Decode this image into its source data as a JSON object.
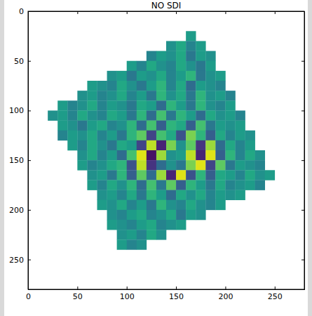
{
  "chart_data": {
    "type": "heatmap",
    "title": "NO SDI",
    "color": "viridis",
    "xlim": [
      0,
      280
    ],
    "ylim": [
      280,
      0
    ],
    "xticks": [
      0,
      50,
      100,
      150,
      200,
      250
    ],
    "yticks": [
      0,
      50,
      100,
      150,
      200,
      250
    ],
    "zlim": [
      -1,
      1
    ],
    "x_edges": [
      0,
      10,
      20,
      30,
      40,
      50,
      60,
      70,
      80,
      90,
      100,
      110,
      120,
      130,
      140,
      150,
      160,
      170,
      180,
      190,
      200,
      210,
      220,
      230,
      240,
      250,
      260,
      270,
      280
    ],
    "y_edges": [
      0,
      10,
      20,
      30,
      40,
      50,
      60,
      70,
      80,
      90,
      100,
      110,
      120,
      130,
      140,
      150,
      160,
      170,
      180,
      190,
      200,
      210,
      220,
      230,
      240,
      250,
      260,
      270,
      280
    ],
    "cells": [
      [
        null,
        null,
        null,
        null,
        null,
        null,
        null,
        null,
        null,
        null,
        null,
        null,
        null,
        null,
        null,
        null,
        null,
        null,
        null,
        null,
        null,
        null,
        null,
        null,
        null,
        null,
        null,
        null
      ],
      [
        null,
        null,
        null,
        null,
        null,
        null,
        null,
        null,
        null,
        null,
        null,
        null,
        null,
        null,
        null,
        null,
        null,
        null,
        null,
        null,
        null,
        null,
        null,
        null,
        null,
        null,
        null,
        null
      ],
      [
        null,
        null,
        null,
        null,
        null,
        null,
        null,
        null,
        null,
        null,
        null,
        null,
        null,
        null,
        null,
        null,
        0.1,
        null,
        null,
        null,
        null,
        null,
        null,
        null,
        null,
        null,
        null,
        null
      ],
      [
        null,
        null,
        null,
        null,
        null,
        null,
        null,
        null,
        null,
        null,
        null,
        null,
        null,
        null,
        0.0,
        0.2,
        -0.1,
        0.1,
        null,
        null,
        null,
        null,
        null,
        null,
        null,
        null,
        null,
        null
      ],
      [
        null,
        null,
        null,
        null,
        null,
        null,
        null,
        null,
        null,
        null,
        null,
        null,
        -0.1,
        0.1,
        0.0,
        0.2,
        -0.2,
        0.1,
        0.0,
        null,
        null,
        null,
        null,
        null,
        null,
        null,
        null,
        null
      ],
      [
        null,
        null,
        null,
        null,
        null,
        null,
        null,
        null,
        null,
        null,
        0.1,
        -0.1,
        0.2,
        0.0,
        -0.1,
        0.2,
        0.0,
        -0.2,
        0.1,
        null,
        null,
        null,
        null,
        null,
        null,
        null,
        null,
        null
      ],
      [
        null,
        null,
        null,
        null,
        null,
        null,
        null,
        null,
        0.0,
        0.1,
        -0.2,
        0.1,
        0.0,
        0.2,
        -0.1,
        0.1,
        0.3,
        -0.2,
        0.0,
        0.1,
        null,
        null,
        null,
        null,
        null,
        null,
        null,
        null
      ],
      [
        null,
        null,
        null,
        null,
        null,
        null,
        0.1,
        0.0,
        -0.1,
        0.2,
        0.0,
        -0.2,
        0.1,
        0.3,
        -0.1,
        0.2,
        -0.3,
        0.1,
        0.0,
        -0.1,
        null,
        null,
        null,
        null,
        null,
        null,
        null,
        null
      ],
      [
        null,
        null,
        null,
        null,
        null,
        0.0,
        0.1,
        -0.1,
        0.0,
        0.2,
        -0.1,
        0.1,
        -0.2,
        0.3,
        0.0,
        0.2,
        -0.2,
        0.3,
        0.0,
        0.1,
        -0.1,
        null,
        null,
        null,
        null,
        null,
        null,
        null
      ],
      [
        null,
        null,
        null,
        0.1,
        -0.1,
        0.0,
        0.2,
        -0.1,
        0.1,
        0.0,
        -0.2,
        0.2,
        0.1,
        -0.3,
        0.3,
        0.1,
        -0.2,
        0.3,
        0.0,
        -0.1,
        0.1,
        null,
        null,
        null,
        null,
        null,
        null,
        null
      ],
      [
        null,
        null,
        0.0,
        0.1,
        -0.1,
        0.2,
        0.0,
        -0.1,
        0.2,
        0.1,
        -0.2,
        0.3,
        -0.3,
        0.4,
        -0.2,
        0.3,
        0.1,
        -0.3,
        0.2,
        0.0,
        0.1,
        -0.1,
        null,
        null,
        null,
        null,
        null,
        null
      ],
      [
        null,
        null,
        null,
        0.1,
        0.0,
        -0.2,
        0.1,
        0.2,
        -0.1,
        0.0,
        0.3,
        -0.3,
        0.4,
        -0.4,
        0.3,
        0.2,
        -0.4,
        0.4,
        -0.2,
        0.1,
        0.0,
        0.1,
        null,
        null,
        null,
        null,
        null,
        null
      ],
      [
        null,
        null,
        null,
        -0.1,
        0.1,
        0.0,
        0.2,
        -0.1,
        0.1,
        -0.2,
        0.3,
        0.5,
        -0.6,
        0.4,
        0.2,
        -0.5,
        0.6,
        0.3,
        -0.4,
        0.2,
        -0.1,
        0.1,
        0.0,
        null,
        null,
        null,
        null,
        null
      ],
      [
        null,
        null,
        null,
        null,
        0.1,
        -0.1,
        0.2,
        0.0,
        -0.2,
        0.2,
        0.1,
        -0.6,
        0.8,
        -0.8,
        0.6,
        0.0,
        0.5,
        -0.7,
        0.7,
        -0.3,
        0.2,
        -0.1,
        0.1,
        null,
        null,
        null,
        null,
        null
      ],
      [
        null,
        null,
        null,
        null,
        null,
        0.0,
        0.2,
        -0.1,
        0.1,
        -0.3,
        0.4,
        0.9,
        -0.9,
        0.7,
        0.0,
        0.1,
        0.8,
        -0.8,
        0.9,
        -0.4,
        0.3,
        -0.1,
        0.2,
        0.0,
        null,
        null,
        null,
        null
      ],
      [
        null,
        null,
        null,
        null,
        null,
        0.1,
        -0.1,
        0.0,
        0.2,
        0.3,
        -0.5,
        0.8,
        -0.7,
        -0.3,
        0.0,
        -0.2,
        0.6,
        0.9,
        -0.6,
        0.5,
        -0.2,
        0.1,
        0.0,
        -0.1,
        null,
        null,
        null,
        null
      ],
      [
        null,
        null,
        null,
        null,
        null,
        null,
        0.0,
        0.1,
        -0.2,
        0.3,
        -0.4,
        0.5,
        -0.3,
        0.7,
        -0.8,
        0.9,
        -0.5,
        0.3,
        -0.4,
        0.2,
        0.1,
        -0.1,
        0.2,
        0.0,
        0.1,
        null,
        null,
        null
      ],
      [
        null,
        null,
        null,
        null,
        null,
        null,
        0.1,
        -0.1,
        0.2,
        0.0,
        0.3,
        -0.3,
        0.4,
        -0.2,
        0.5,
        -0.4,
        0.3,
        0.1,
        -0.2,
        0.2,
        -0.1,
        0.0,
        0.1,
        -0.1,
        null,
        null,
        null,
        null
      ],
      [
        null,
        null,
        null,
        null,
        null,
        null,
        null,
        0.0,
        0.1,
        -0.1,
        0.2,
        -0.2,
        0.3,
        0.1,
        -0.3,
        0.2,
        0.0,
        0.2,
        -0.1,
        0.1,
        0.0,
        0.1,
        null,
        null,
        null,
        null,
        null,
        null
      ],
      [
        null,
        null,
        null,
        null,
        null,
        null,
        null,
        0.1,
        0.0,
        0.2,
        -0.1,
        0.1,
        -0.2,
        0.3,
        0.0,
        -0.1,
        0.2,
        0.0,
        -0.1,
        0.1,
        null,
        null,
        null,
        null,
        null,
        null,
        null,
        null
      ],
      [
        null,
        null,
        null,
        null,
        null,
        null,
        null,
        null,
        0.0,
        -0.1,
        0.1,
        0.2,
        -0.1,
        0.0,
        0.2,
        -0.2,
        0.1,
        0.0,
        null,
        null,
        null,
        null,
        null,
        null,
        null,
        null,
        null,
        null
      ],
      [
        null,
        null,
        null,
        null,
        null,
        null,
        null,
        null,
        0.1,
        0.0,
        -0.1,
        0.1,
        0.2,
        -0.1,
        0.0,
        0.1,
        null,
        null,
        null,
        null,
        null,
        null,
        null,
        null,
        null,
        null,
        null,
        null
      ],
      [
        null,
        null,
        null,
        null,
        null,
        null,
        null,
        null,
        null,
        0.0,
        0.1,
        -0.1,
        0.2,
        0.0,
        null,
        null,
        null,
        null,
        null,
        null,
        null,
        null,
        null,
        null,
        null,
        null,
        null,
        null
      ],
      [
        null,
        null,
        null,
        null,
        null,
        null,
        null,
        null,
        null,
        0.1,
        -0.1,
        0.0,
        null,
        null,
        null,
        null,
        null,
        null,
        null,
        null,
        null,
        null,
        null,
        null,
        null,
        null,
        null,
        null
      ],
      [
        null,
        null,
        null,
        null,
        null,
        null,
        null,
        null,
        null,
        null,
        null,
        null,
        null,
        null,
        null,
        null,
        null,
        null,
        null,
        null,
        null,
        null,
        null,
        null,
        null,
        null,
        null,
        null
      ],
      [
        null,
        null,
        null,
        null,
        null,
        null,
        null,
        null,
        null,
        null,
        null,
        null,
        null,
        null,
        null,
        null,
        null,
        null,
        null,
        null,
        null,
        null,
        null,
        null,
        null,
        null,
        null,
        null
      ],
      [
        null,
        null,
        null,
        null,
        null,
        null,
        null,
        null,
        null,
        null,
        null,
        null,
        null,
        null,
        null,
        null,
        null,
        null,
        null,
        null,
        null,
        null,
        null,
        null,
        null,
        null,
        null,
        null
      ],
      [
        null,
        null,
        null,
        null,
        null,
        null,
        null,
        null,
        null,
        null,
        null,
        null,
        null,
        null,
        null,
        null,
        null,
        null,
        null,
        null,
        null,
        null,
        null,
        null,
        null,
        null,
        null,
        null
      ]
    ]
  }
}
